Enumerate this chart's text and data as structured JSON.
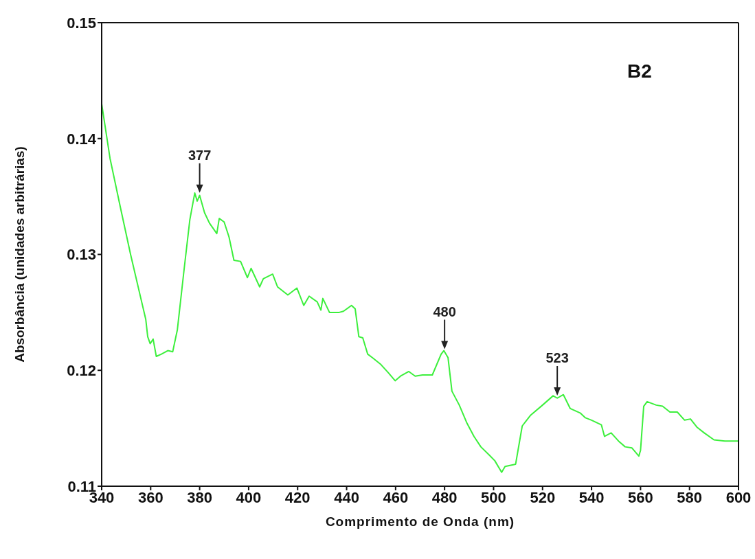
{
  "chart_data": {
    "type": "line",
    "xlabel": "Comprimento de Onda (nm)",
    "ylabel": "Absorbância (unidades arbitrárias)",
    "xlim": [
      340,
      600
    ],
    "xticks": [
      340,
      360,
      380,
      400,
      420,
      440,
      460,
      480,
      500,
      520,
      540,
      560,
      580,
      600
    ],
    "ylim": [
      0.11,
      0.15
    ],
    "yticks": [
      0.11,
      0.12,
      0.13,
      0.14,
      0.15
    ],
    "grid": false,
    "legend": false,
    "marker": "none",
    "line_style": "solid",
    "annotations": [
      "B2",
      {
        "text": "377",
        "x": 380,
        "y": 0.1352
      },
      {
        "text": "480",
        "x": 480,
        "y": 0.1217
      },
      {
        "text": "523",
        "x": 526,
        "y": 0.1177
      }
    ],
    "series": [
      {
        "color": "#3cef3c",
        "x": [
          340,
          343.4,
          347.6,
          351.8,
          356,
          358,
          358.8,
          359.8,
          361,
          362.3,
          364.4,
          367,
          369,
          370.9,
          373.7,
          376,
          378,
          379,
          380,
          382,
          384,
          387,
          388,
          390,
          392,
          394,
          396.7,
          399.5,
          401,
          404.5,
          406,
          409.8,
          411.8,
          416,
          419.7,
          422.5,
          424.7,
          428,
          429.5,
          430.3,
          433,
          437,
          438.7,
          442,
          443.5,
          445,
          446.6,
          448.6,
          450.5,
          454,
          457,
          459.8,
          462,
          465.4,
          468,
          471,
          475,
          478.6,
          479.7,
          481.4,
          483,
          486,
          489,
          492,
          494.8,
          498.2,
          500.5,
          503.3,
          504.7,
          509,
          511.7,
          515,
          520,
          524.3,
          526,
          528.5,
          531.3,
          535.5,
          537.5,
          540,
          544,
          545.3,
          548,
          551,
          553.7,
          556.5,
          559.3,
          560,
          561.3,
          562.7,
          566.4,
          569,
          572,
          575,
          578,
          580.4,
          583,
          586,
          590,
          594.4,
          600
        ],
        "values": [
          0.143,
          0.1383,
          0.1341,
          0.13,
          0.1262,
          0.1244,
          0.1229,
          0.1223,
          0.1227,
          0.1212,
          0.1214,
          0.1217,
          0.1216,
          0.1235,
          0.1288,
          0.133,
          0.1353,
          0.1346,
          0.1351,
          0.1336,
          0.1327,
          0.1318,
          0.1331,
          0.1328,
          0.1315,
          0.1295,
          0.1294,
          0.128,
          0.1288,
          0.1272,
          0.1279,
          0.1283,
          0.1272,
          0.1265,
          0.1271,
          0.1256,
          0.1264,
          0.1259,
          0.1252,
          0.1262,
          0.125,
          0.125,
          0.1251,
          0.1256,
          0.1253,
          0.1229,
          0.1228,
          0.1214,
          0.1211,
          0.1205,
          0.1198,
          0.1191,
          0.1195,
          0.1199,
          0.1195,
          0.1196,
          0.1196,
          0.1214,
          0.1217,
          0.1211,
          0.1182,
          0.117,
          0.1155,
          0.1143,
          0.1134,
          0.1127,
          0.1122,
          0.1112,
          0.1117,
          0.1119,
          0.1152,
          0.1161,
          0.117,
          0.1178,
          0.1176,
          0.1179,
          0.1167,
          0.1163,
          0.1159,
          0.1157,
          0.1153,
          0.1143,
          0.1146,
          0.1139,
          0.1134,
          0.1133,
          0.1126,
          0.1131,
          0.1169,
          0.1173,
          0.117,
          0.1169,
          0.1164,
          0.1164,
          0.1157,
          0.1158,
          0.1151,
          0.1146,
          0.114,
          0.1139,
          0.1139
        ]
      }
    ]
  }
}
